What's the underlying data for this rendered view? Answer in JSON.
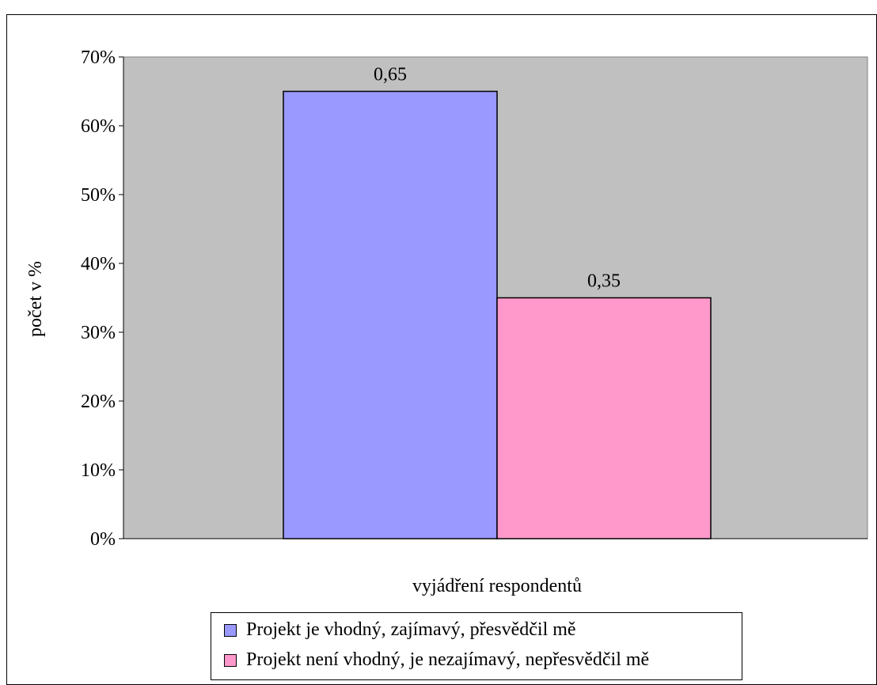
{
  "chart_data": {
    "type": "bar",
    "title": "",
    "xlabel": "vyjádření respondentů",
    "ylabel": "počet v %",
    "ylim": [
      0,
      0.7
    ],
    "yticks": [
      "0%",
      "10%",
      "20%",
      "30%",
      "40%",
      "50%",
      "60%",
      "70%"
    ],
    "grid": false,
    "legend_position": "bottom",
    "series": [
      {
        "name": "Projekt je vhodný, zajímavý, přesvědčil mě",
        "value": 0.65,
        "label": "0,65",
        "color": "#9999ff"
      },
      {
        "name": "Projekt není vhodný, je nezajímavý, nepřesvědčil mě",
        "value": 0.35,
        "label": "0,35",
        "color": "#ff99cc"
      }
    ],
    "plot_background": "#c0c0c0"
  }
}
